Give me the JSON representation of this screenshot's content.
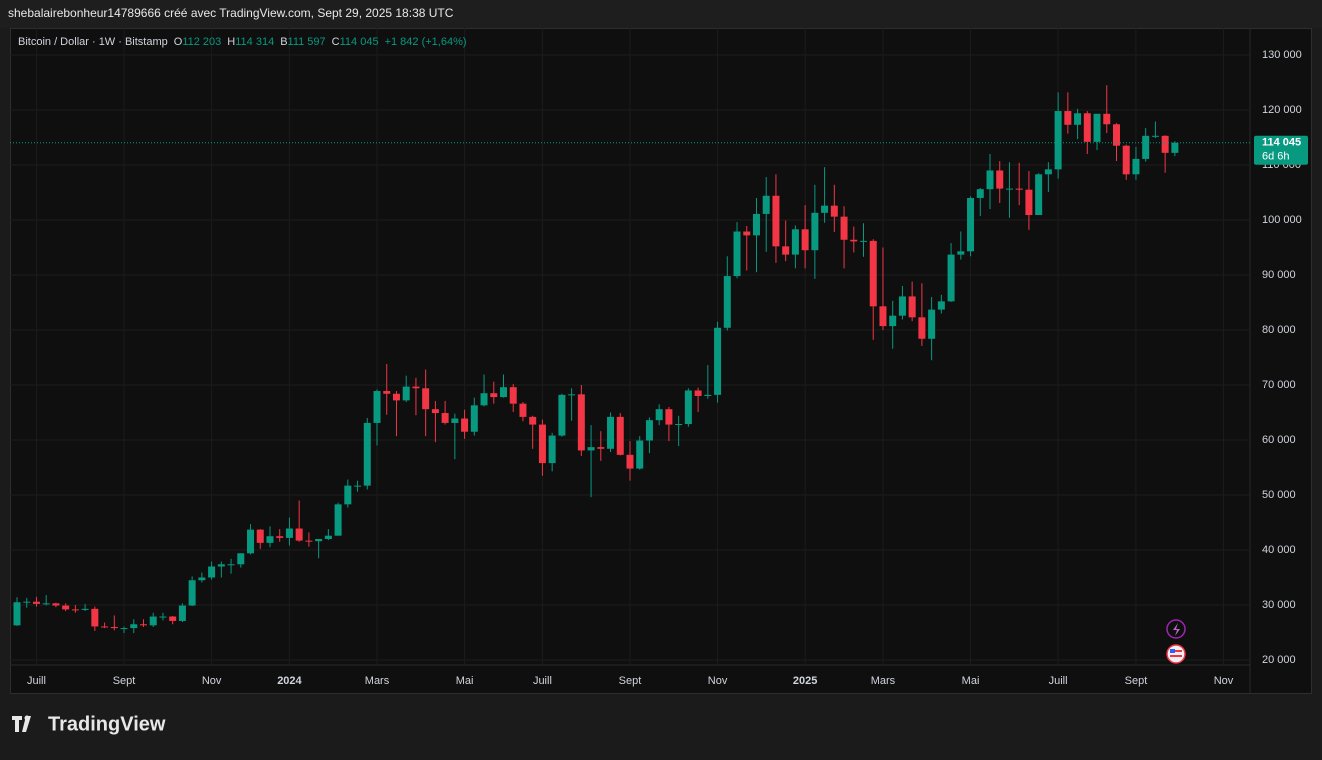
{
  "header": "shebalairebonheur14789666 créé avec TradingView.com, Sept 29, 2025 18:38 UTC",
  "brand": "TradingView",
  "chart_data": {
    "type": "candlestick",
    "legend": {
      "symbol": "Bitcoin / Dollar · 1W · Bitstamp",
      "o_label": "O",
      "o": "112 203",
      "h_label": "H",
      "h": "114 314",
      "l_label": "B",
      "l": "111 597",
      "c_label": "C",
      "c": "114 045",
      "change": "+1 842 (+1,64%)"
    },
    "up_color": "#089981",
    "down_color": "#f23645",
    "grid": true,
    "ylim": [
      14000,
      134900
    ],
    "yticks": [
      {
        "value": 20000,
        "label": "20 000"
      },
      {
        "value": 30000,
        "label": "30 000"
      },
      {
        "value": 40000,
        "label": "40 000"
      },
      {
        "value": 50000,
        "label": "50 000"
      },
      {
        "value": 60000,
        "label": "60 000"
      },
      {
        "value": 70000,
        "label": "70 000"
      },
      {
        "value": 80000,
        "label": "80 000"
      },
      {
        "value": 90000,
        "label": "90 000"
      },
      {
        "value": 100000,
        "label": "100 000"
      },
      {
        "value": 110000,
        "label": "110 000"
      },
      {
        "value": 120000,
        "label": "120 000"
      },
      {
        "value": 130000,
        "label": "130 000"
      }
    ],
    "last_price": {
      "value": 114045,
      "label": "114 045"
    },
    "countdown": "6d 6h",
    "categories": [
      null,
      null,
      "Juill",
      null,
      null,
      null,
      null,
      null,
      null,
      null,
      null,
      "Sept",
      null,
      null,
      null,
      null,
      null,
      null,
      null,
      null,
      "Nov",
      null,
      null,
      null,
      null,
      null,
      null,
      null,
      "2024",
      null,
      null,
      null,
      null,
      null,
      null,
      null,
      null,
      "Mars",
      null,
      null,
      null,
      null,
      null,
      null,
      null,
      null,
      "Mai",
      null,
      null,
      null,
      null,
      null,
      null,
      null,
      "Juill",
      null,
      null,
      null,
      null,
      null,
      null,
      null,
      null,
      "Sept",
      null,
      null,
      null,
      null,
      null,
      null,
      null,
      null,
      "Nov",
      null,
      null,
      null,
      null,
      null,
      null,
      null,
      null,
      "2025",
      null,
      null,
      null,
      null,
      null,
      null,
      null,
      "Mars",
      null,
      null,
      null,
      null,
      null,
      null,
      null,
      null,
      "Mai",
      null,
      null,
      null,
      null,
      null,
      null,
      null,
      null,
      "Juill",
      null,
      null,
      null,
      null,
      null,
      null,
      null,
      "Sept",
      null,
      null,
      null,
      null,
      null,
      null,
      null,
      null,
      "Nov"
    ],
    "open": [
      26300,
      30500,
      30600,
      30200,
      30300,
      29900,
      29200,
      29100,
      29300,
      26100,
      26000,
      25800,
      25800,
      26500,
      26300,
      27900,
      27900,
      27100,
      29900,
      34500,
      35000,
      37000,
      37400,
      37400,
      39400,
      43700,
      41300,
      42500,
      42200,
      43900,
      41700,
      41600,
      42000,
      42600,
      48300,
      51700,
      51700,
      63100,
      68900,
      68400,
      67200,
      69700,
      69400,
      65600,
      64900,
      63100,
      63900,
      61500,
      66300,
      68500,
      67800,
      69600,
      66600,
      64200,
      62800,
      55800,
      60800,
      68200,
      68300,
      58100,
      58700,
      58400,
      64200,
      57300,
      54800,
      59900,
      63600,
      65600,
      62800,
      62900,
      69000,
      68000,
      68200,
      80400,
      89800,
      97900,
      97200,
      101100,
      104400,
      95200,
      93700,
      98300,
      94500,
      101300,
      102600,
      100600,
      96400,
      96100,
      96200,
      84300,
      80700,
      82600,
      86100,
      82300,
      78400,
      83700,
      85200,
      93700,
      94300,
      104000,
      105600,
      109000,
      105700,
      105700,
      105500,
      100900,
      108300,
      109200,
      119800,
      117300,
      119400,
      114200,
      119300,
      117400,
      113500,
      108300,
      111100,
      115300,
      115300,
      112203,
      null,
      null,
      null,
      null,
      null
    ],
    "high": [
      31400,
      31300,
      31500,
      31800,
      30400,
      30300,
      30000,
      30200,
      29700,
      26800,
      28100,
      26100,
      27400,
      27400,
      28600,
      28600,
      28000,
      30300,
      35200,
      35900,
      37900,
      37900,
      38400,
      39400,
      44700,
      43800,
      44300,
      43800,
      45900,
      49000,
      43200,
      41900,
      43800,
      48600,
      52800,
      52600,
      64000,
      69200,
      73800,
      68900,
      71700,
      71300,
      72800,
      67100,
      67100,
      64800,
      65500,
      67700,
      71900,
      70600,
      71900,
      70200,
      66900,
      64400,
      63700,
      61300,
      68400,
      69400,
      70000,
      62700,
      61600,
      65000,
      64900,
      59800,
      60700,
      64100,
      66500,
      66000,
      64400,
      69400,
      69500,
      73600,
      81500,
      93400,
      99600,
      98900,
      104000,
      107800,
      108300,
      99900,
      99000,
      102700,
      106400,
      109600,
      106400,
      102500,
      98800,
      99400,
      96500,
      95000,
      85300,
      88000,
      88800,
      88500,
      86000,
      86400,
      95800,
      97900,
      104300,
      105800,
      112000,
      110700,
      110500,
      110400,
      108900,
      108500,
      110500,
      123200,
      123200,
      120200,
      119800,
      119300,
      124500,
      117600,
      113700,
      113300,
      116700,
      117900,
      115400,
      114314,
      null,
      null,
      null,
      null,
      null
    ],
    "low": [
      26200,
      29500,
      29700,
      29900,
      29600,
      28900,
      28600,
      28900,
      25300,
      25800,
      25400,
      24900,
      24900,
      26000,
      26000,
      27200,
      26500,
      26900,
      29800,
      34100,
      34600,
      35000,
      35700,
      36800,
      39200,
      40200,
      40500,
      41500,
      40800,
      41500,
      40600,
      38500,
      41800,
      42600,
      47700,
      50600,
      51000,
      59000,
      64600,
      60700,
      66900,
      64500,
      60700,
      59600,
      62800,
      56500,
      60200,
      60800,
      66100,
      66600,
      67700,
      65100,
      63400,
      58400,
      53500,
      54300,
      60600,
      63500,
      57100,
      49600,
      56200,
      57800,
      57200,
      52600,
      54600,
      57600,
      62700,
      59800,
      58900,
      62400,
      65100,
      67500,
      66800,
      79900,
      89400,
      90800,
      90500,
      94200,
      92200,
      92500,
      91200,
      91200,
      89300,
      99500,
      97800,
      91200,
      94100,
      93300,
      78200,
      80000,
      76600,
      81900,
      81600,
      77100,
      74500,
      83000,
      85100,
      92800,
      93400,
      100700,
      102000,
      103100,
      100400,
      102700,
      98200,
      100900,
      105100,
      107500,
      115700,
      114700,
      112000,
      112700,
      115800,
      110700,
      107300,
      107300,
      110600,
      114900,
      108600,
      111597,
      null,
      null,
      null,
      null,
      null
    ],
    "close": [
      30500,
      30600,
      30200,
      30300,
      29900,
      29200,
      29100,
      29300,
      26100,
      26000,
      25800,
      25800,
      26500,
      26300,
      27900,
      27900,
      27100,
      29900,
      34500,
      35000,
      37000,
      37400,
      37400,
      39400,
      43700,
      41300,
      42500,
      42200,
      43900,
      41700,
      41600,
      42000,
      42600,
      48300,
      51700,
      51700,
      63100,
      68900,
      68400,
      67200,
      69700,
      69400,
      65600,
      64900,
      63100,
      63900,
      61500,
      66300,
      68500,
      67800,
      69600,
      66600,
      64200,
      62800,
      55800,
      60800,
      68200,
      68300,
      58100,
      58700,
      58400,
      64200,
      57300,
      54800,
      59900,
      63600,
      65600,
      62800,
      62900,
      69000,
      68000,
      68200,
      80400,
      89800,
      97900,
      97200,
      101100,
      104400,
      95200,
      93700,
      98300,
      94500,
      101300,
      102600,
      100600,
      96400,
      96100,
      96200,
      84300,
      80700,
      82600,
      86100,
      82300,
      78400,
      83700,
      85200,
      93700,
      94300,
      104000,
      105600,
      109000,
      105700,
      105700,
      105500,
      100900,
      108300,
      109200,
      119800,
      117300,
      119400,
      114200,
      119300,
      117400,
      113500,
      108300,
      111100,
      115300,
      115300,
      112200,
      114045,
      null,
      null,
      null,
      null,
      null
    ]
  }
}
